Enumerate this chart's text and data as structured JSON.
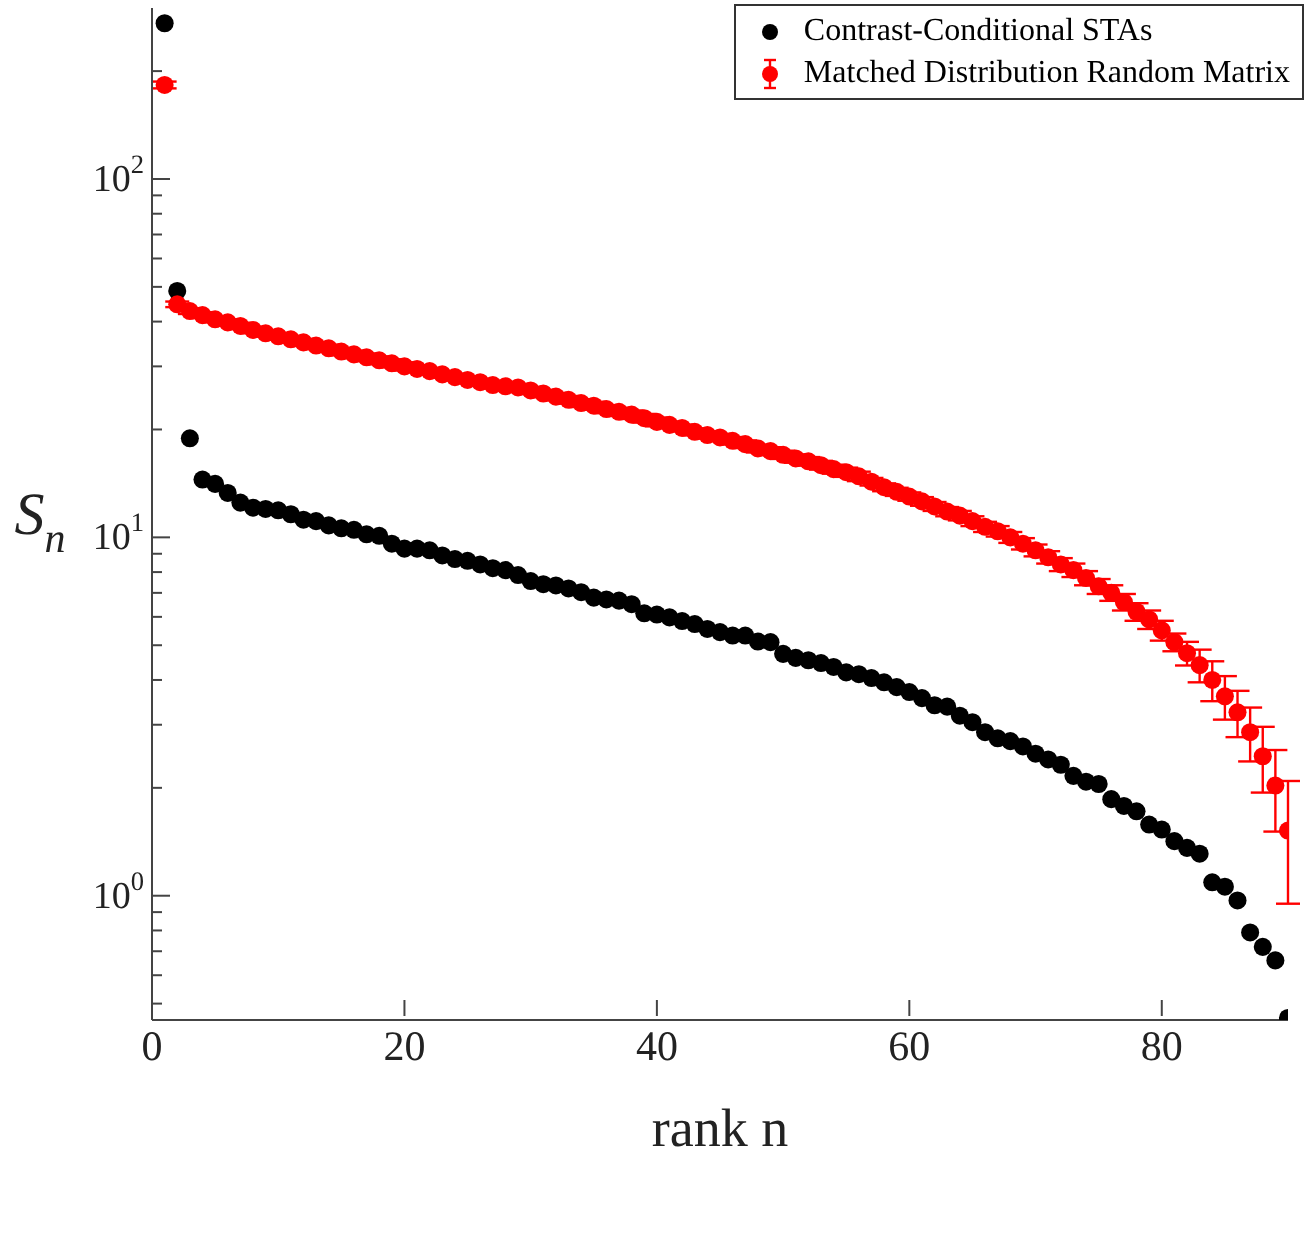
{
  "chart_data": {
    "type": "scatter",
    "xlabel": "rank n",
    "ylabel": "S$_{n}$",
    "x": [
      1,
      2,
      3,
      4,
      5,
      6,
      7,
      8,
      9,
      10,
      11,
      12,
      13,
      14,
      15,
      16,
      17,
      18,
      19,
      20,
      21,
      22,
      23,
      24,
      25,
      26,
      27,
      28,
      29,
      30,
      31,
      32,
      33,
      34,
      35,
      36,
      37,
      38,
      39,
      40,
      41,
      42,
      43,
      44,
      45,
      46,
      47,
      48,
      49,
      50,
      51,
      52,
      53,
      54,
      55,
      56,
      57,
      58,
      59,
      60,
      61,
      62,
      63,
      64,
      65,
      66,
      67,
      68,
      69,
      70,
      71,
      72,
      73,
      74,
      75,
      76,
      77,
      78,
      79,
      80,
      81,
      82,
      83,
      84,
      85,
      86,
      87,
      88,
      89,
      90
    ],
    "series": [
      {
        "name": "Contrast-Conditional STAs",
        "color": "#000000",
        "values": [
          272,
          48.7,
          18.9,
          14.5,
          14.1,
          13.3,
          12.5,
          12.1,
          12.0,
          11.9,
          11.6,
          11.2,
          11.1,
          10.8,
          10.6,
          10.5,
          10.2,
          10.1,
          9.6,
          9.3,
          9.3,
          9.2,
          8.9,
          8.7,
          8.6,
          8.4,
          8.2,
          8.1,
          7.85,
          7.55,
          7.4,
          7.34,
          7.2,
          7.03,
          6.79,
          6.71,
          6.66,
          6.51,
          6.14,
          6.09,
          5.98,
          5.84,
          5.73,
          5.55,
          5.44,
          5.32,
          5.32,
          5.12,
          5.1,
          4.73,
          4.61,
          4.54,
          4.46,
          4.35,
          4.2,
          4.15,
          4.05,
          3.94,
          3.82,
          3.7,
          3.56,
          3.4,
          3.37,
          3.18,
          3.05,
          2.86,
          2.75,
          2.7,
          2.61,
          2.49,
          2.4,
          2.32,
          2.16,
          2.08,
          2.05,
          1.86,
          1.78,
          1.72,
          1.58,
          1.53,
          1.42,
          1.36,
          1.31,
          1.09,
          1.06,
          0.97,
          0.79,
          0.72,
          0.66,
          0.456
        ]
      },
      {
        "name": "Matched Distribution Random Matrix",
        "color": "#ff0000",
        "values": [
          183,
          44.7,
          42.8,
          41.7,
          40.6,
          39.8,
          38.9,
          37.9,
          37.1,
          36.4,
          35.7,
          35.0,
          34.3,
          33.7,
          33.0,
          32.4,
          31.8,
          31.2,
          30.6,
          30.0,
          29.5,
          29.1,
          28.5,
          28.0,
          27.5,
          27.1,
          26.6,
          26.4,
          26.2,
          25.7,
          25.2,
          24.7,
          24.2,
          23.7,
          23.3,
          22.8,
          22.4,
          22.0,
          21.5,
          21.0,
          20.6,
          20.2,
          19.7,
          19.3,
          19.0,
          18.6,
          18.2,
          17.7,
          17.4,
          17.0,
          16.6,
          16.3,
          15.9,
          15.5,
          15.2,
          14.8,
          14.3,
          13.8,
          13.4,
          13.0,
          12.6,
          12.2,
          11.8,
          11.5,
          11.1,
          10.7,
          10.4,
          10.0,
          9.6,
          9.2,
          8.8,
          8.4,
          8.1,
          7.7,
          7.3,
          7.0,
          6.6,
          6.2,
          5.9,
          5.5,
          5.1,
          4.75,
          4.4,
          4.0,
          3.6,
          3.25,
          2.86,
          2.45,
          2.03,
          1.52
        ],
        "errors": [
          4,
          0.8,
          0.8,
          0.8,
          0.8,
          0.8,
          0.8,
          0.8,
          0.8,
          0.8,
          0.8,
          0.8,
          0.8,
          0.8,
          0.8,
          0.8,
          0.8,
          0.8,
          0.8,
          0.8,
          0.6,
          0.6,
          0.6,
          0.6,
          0.6,
          0.6,
          0.6,
          0.6,
          0.6,
          0.6,
          0.6,
          0.6,
          0.6,
          0.6,
          0.6,
          0.6,
          0.6,
          0.6,
          0.6,
          0.6,
          0.45,
          0.45,
          0.45,
          0.45,
          0.45,
          0.45,
          0.45,
          0.45,
          0.45,
          0.45,
          0.45,
          0.45,
          0.45,
          0.45,
          0.45,
          0.45,
          0.35,
          0.35,
          0.35,
          0.35,
          0.35,
          0.35,
          0.35,
          0.35,
          0.35,
          0.35,
          0.35,
          0.35,
          0.35,
          0.35,
          0.35,
          0.35,
          0.35,
          0.35,
          0.35,
          0.35,
          0.35,
          0.35,
          0.35,
          0.35,
          0.29,
          0.36,
          0.46,
          0.51,
          0.5,
          0.48,
          0.49,
          0.51,
          0.52,
          0.57
        ]
      }
    ],
    "xlim": [
      0,
      90
    ],
    "xticks": [
      0,
      20,
      40,
      60,
      80
    ],
    "ylim": [
      0.45,
      300
    ],
    "yticks": [
      {
        "value": 0.5,
        "label": null
      },
      {
        "value": 0.6,
        "label": null
      },
      {
        "value": 0.7,
        "label": null
      },
      {
        "value": 0.8,
        "label": null
      },
      {
        "value": 0.9,
        "label": null
      },
      {
        "value": 1,
        "label": "10$^{0}$"
      },
      {
        "value": 2,
        "label": null
      },
      {
        "value": 3,
        "label": null
      },
      {
        "value": 4,
        "label": null
      },
      {
        "value": 5,
        "label": null
      },
      {
        "value": 6,
        "label": null
      },
      {
        "value": 7,
        "label": null
      },
      {
        "value": 8,
        "label": null
      },
      {
        "value": 9,
        "label": null
      },
      {
        "value": 10,
        "label": "10$^{1}$"
      },
      {
        "value": 20,
        "label": null
      },
      {
        "value": 30,
        "label": null
      },
      {
        "value": 40,
        "label": null
      },
      {
        "value": 50,
        "label": null
      },
      {
        "value": 60,
        "label": null
      },
      {
        "value": 70,
        "label": null
      },
      {
        "value": 80,
        "label": null
      },
      {
        "value": 90,
        "label": null
      },
      {
        "value": 100,
        "label": "10$^{2}$"
      },
      {
        "value": 200,
        "label": null
      }
    ],
    "log": "y",
    "legend": "top right",
    "marker": "circle"
  }
}
